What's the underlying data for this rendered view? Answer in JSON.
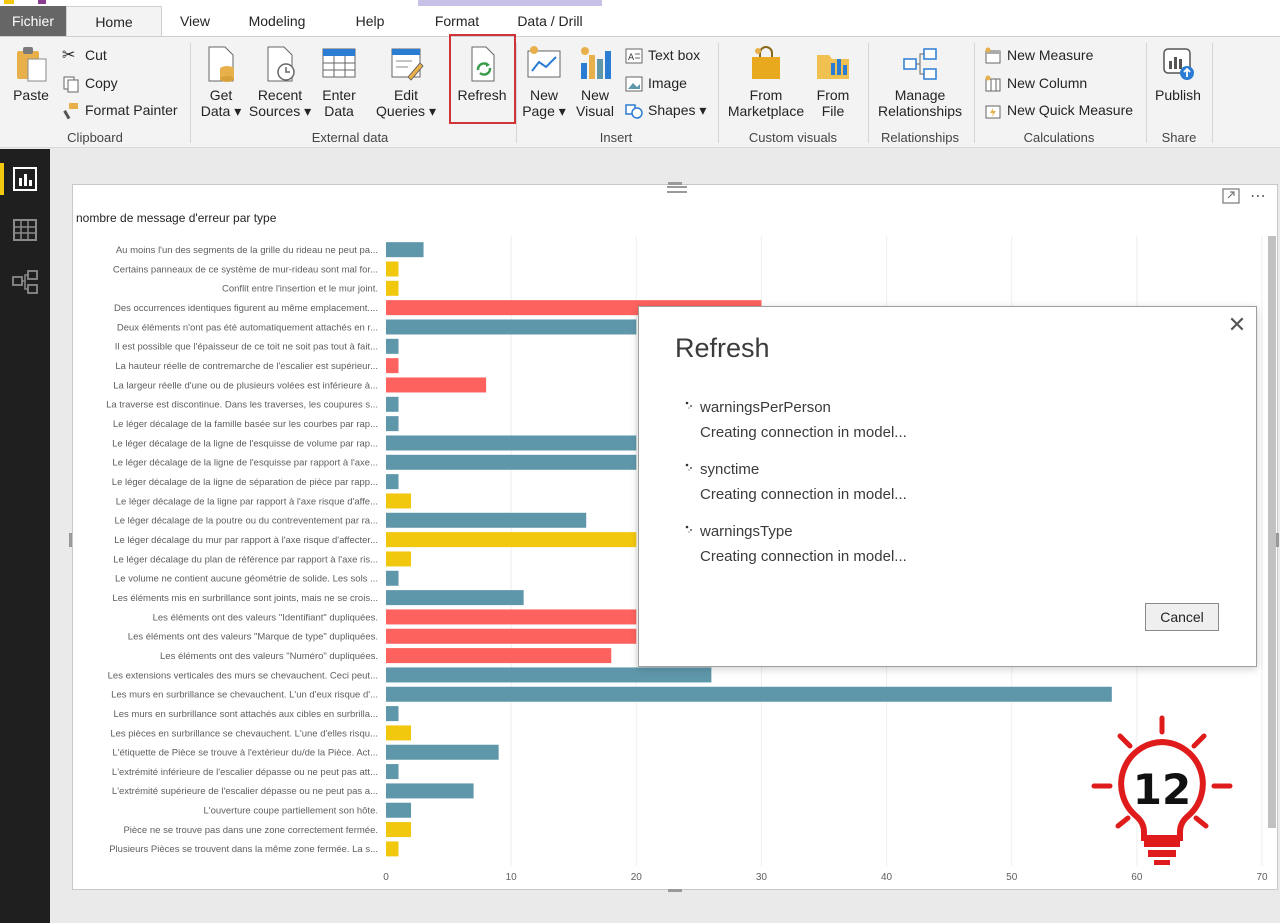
{
  "tabs": [
    {
      "label": "Fichier"
    },
    {
      "label": "Home"
    },
    {
      "label": "View"
    },
    {
      "label": "Modeling"
    },
    {
      "label": "Help"
    },
    {
      "label": "Format"
    },
    {
      "label": "Data / Drill"
    }
  ],
  "ribbon": {
    "clipboard": {
      "group_label": "Clipboard",
      "paste": "Paste",
      "cut": "Cut",
      "copy": "Copy",
      "format_painter": "Format Painter"
    },
    "external_data": {
      "group_label": "External data",
      "get_data": [
        "Get",
        "Data ▾"
      ],
      "recent_sources": [
        "Recent",
        "Sources ▾"
      ],
      "enter_data": [
        "Enter",
        "Data"
      ],
      "edit_queries": [
        "Edit",
        "Queries ▾"
      ],
      "refresh": "Refresh"
    },
    "insert": {
      "group_label": "Insert",
      "new_page": [
        "New",
        "Page ▾"
      ],
      "new_visual": [
        "New",
        "Visual"
      ],
      "text_box": "Text box",
      "image": "Image",
      "shapes": "Shapes ▾"
    },
    "custom_visuals": {
      "group_label": "Custom visuals",
      "from_marketplace": [
        "From",
        "Marketplace"
      ],
      "from_file": [
        "From",
        "File"
      ]
    },
    "relationships": {
      "group_label": "Relationships",
      "manage": [
        "Manage",
        "Relationships"
      ]
    },
    "calculations": {
      "group_label": "Calculations",
      "new_measure": "New Measure",
      "new_column": "New Column",
      "new_quick_measure": "New Quick Measure"
    },
    "share": {
      "group_label": "Share",
      "publish": "Publish"
    }
  },
  "colors": {
    "teal": "#5f97aa",
    "yellow": "#f2c80f",
    "red": "#fd625e",
    "gridline": "#eeeeee"
  },
  "chart_data": {
    "type": "bar",
    "orientation": "horizontal",
    "title": "nombre de message d'erreur par type",
    "xlim": [
      0,
      70
    ],
    "x_ticks": [
      0,
      10,
      20,
      30,
      40,
      50,
      60,
      70
    ],
    "grid": true,
    "categories": [
      "Au moins l'un des segments de la grille du rideau ne peut pa...",
      "Certains panneaux de ce système de mur-rideau sont mal for...",
      "Conflit entre l'insertion et le mur joint.",
      "Des occurrences identiques figurent au même emplacement....",
      "Deux éléments n'ont pas été automatiquement attachés en r...",
      "Il est possible que l'épaisseur de ce toit ne soit pas tout à fait...",
      "La hauteur réelle de contremarche de l'escalier est supérieur...",
      "La largeur réelle d'une ou de plusieurs volées est inférieure à...",
      "La traverse est discontinue. Dans les traverses, les coupures s...",
      "Le léger décalage de la famille basée sur les courbes par rap...",
      "Le léger décalage de la ligne de l'esquisse de volume par rap...",
      "Le léger décalage de la ligne de l'esquisse par rapport à l'axe...",
      "Le léger décalage de la ligne de séparation de pièce par rapp...",
      "Le léger décalage de la ligne par rapport à l'axe risque d'affe...",
      "Le léger décalage de la poutre ou du contreventement par ra...",
      "Le léger décalage du mur par rapport à l'axe risque d'affecter...",
      "Le léger décalage du plan de référence par rapport à l'axe ris...",
      "Le volume ne contient aucune géométrie de solide. Les sols ...",
      "Les éléments mis en surbrillance sont joints, mais ne se crois...",
      "Les éléments ont des valeurs \"Identifiant\" dupliquées.",
      "Les éléments ont des valeurs \"Marque de type\" dupliquées.",
      "Les éléments ont des valeurs \"Numéro\" dupliquées.",
      "Les extensions verticales des murs se chevauchent. Ceci peut...",
      "Les murs en surbrillance se chevauchent. L'un d'eux risque d'...",
      "Les murs en surbrillance sont attachés aux cibles en surbrilla...",
      "Les pièces en surbrillance se chevauchent. L'une d'elles risqu...",
      "L'étiquette de Pièce se trouve à l'extérieur du/de la Pièce. Act...",
      "L'extrémité inférieure de l'escalier dépasse ou ne peut pas att...",
      "L'extrémité supérieure de l'escalier dépasse ou ne peut pas a...",
      "L'ouverture coupe partiellement son hôte.",
      "Pièce ne se trouve pas dans une zone correctement fermée.",
      "Plusieurs Pièces se trouvent dans la même zone fermée. La s..."
    ],
    "values": [
      3,
      1,
      1,
      30,
      20,
      1,
      1,
      8,
      1,
      1,
      20,
      20,
      1,
      2,
      16,
      20,
      2,
      1,
      11,
      20,
      20,
      18,
      26,
      58,
      1,
      2,
      9,
      1,
      7,
      2,
      2,
      1
    ],
    "bar_colors": [
      "teal",
      "yellow",
      "yellow",
      "red",
      "teal",
      "teal",
      "red",
      "red",
      "teal",
      "teal",
      "teal",
      "teal",
      "teal",
      "yellow",
      "teal",
      "yellow",
      "yellow",
      "teal",
      "teal",
      "red",
      "red",
      "red",
      "teal",
      "teal",
      "teal",
      "yellow",
      "teal",
      "teal",
      "teal",
      "teal",
      "yellow",
      "yellow"
    ]
  },
  "dialog": {
    "title": "Refresh",
    "close_glyph": "✕",
    "items": [
      {
        "name": "warningsPerPerson",
        "status": "Creating connection in model..."
      },
      {
        "name": "synctime",
        "status": "Creating connection in model..."
      },
      {
        "name": "warningsType",
        "status": "Creating connection in model..."
      }
    ],
    "cancel_label": "Cancel"
  },
  "logo": {
    "number": "12"
  }
}
